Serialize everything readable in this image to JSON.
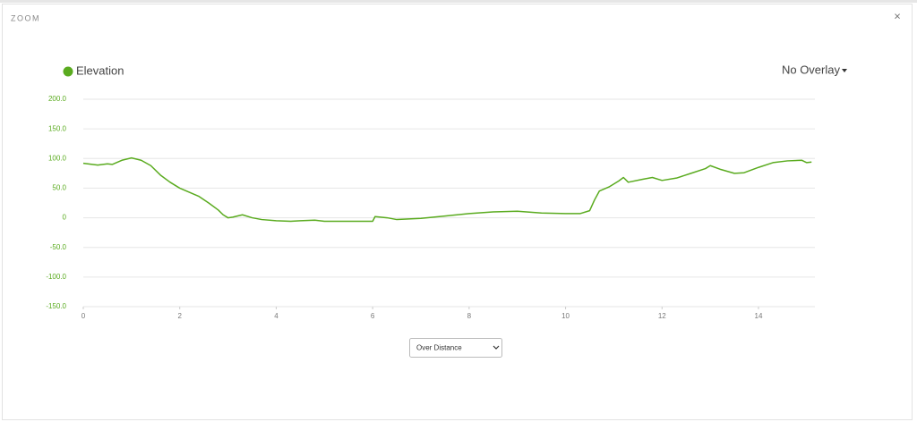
{
  "header": {
    "title": "ZOOM",
    "close": "×"
  },
  "controls": {
    "overlay": "No Overlay",
    "x_mode": "Over Distance"
  },
  "chart_data": {
    "type": "line",
    "x": [
      0,
      0.3,
      0.5,
      0.6,
      0.8,
      1.0,
      1.2,
      1.4,
      1.6,
      1.8,
      2.0,
      2.2,
      2.4,
      2.6,
      2.8,
      2.9,
      3.0,
      3.1,
      3.3,
      3.5,
      3.7,
      4.0,
      4.3,
      4.5,
      4.8,
      5.0,
      5.5,
      6.0,
      6.05,
      6.3,
      6.5,
      7.0,
      7.5,
      8.0,
      8.5,
      9.0,
      9.5,
      10.0,
      10.3,
      10.5,
      10.6,
      10.7,
      10.9,
      11.1,
      11.2,
      11.3,
      11.6,
      11.8,
      12.0,
      12.3,
      12.6,
      12.9,
      13.0,
      13.2,
      13.5,
      13.7,
      14.0,
      14.3,
      14.6,
      14.9,
      15.0,
      15.1
    ],
    "series": [
      {
        "name": "Elevation",
        "color": "#5aab1f",
        "values": [
          92,
          89,
          91,
          90,
          97,
          101,
          97,
          88,
          72,
          60,
          50,
          43,
          36,
          25,
          13,
          5,
          0,
          1,
          5,
          0,
          -3,
          -5,
          -6,
          -5,
          -4,
          -6,
          -6,
          -6,
          2,
          0,
          -3,
          -1,
          3,
          7,
          10,
          11,
          8,
          7,
          7,
          12,
          30,
          45,
          52,
          62,
          68,
          60,
          65,
          68,
          63,
          67,
          75,
          83,
          88,
          82,
          75,
          76,
          85,
          93,
          96,
          97,
          93,
          94
        ]
      }
    ],
    "xlim": [
      0,
      15.17
    ],
    "xticks": [
      0,
      2,
      4,
      6,
      8,
      10,
      12,
      14
    ],
    "ylim": [
      -150,
      200
    ],
    "yticks": [
      {
        "value": 200,
        "label": "200.0"
      },
      {
        "value": 150,
        "label": "150.0"
      },
      {
        "value": 100,
        "label": "100.0"
      },
      {
        "value": 50,
        "label": "50.0"
      },
      0,
      {
        "value": -50,
        "label": "-50.0"
      },
      {
        "value": -100,
        "label": "-100.0"
      },
      {
        "value": -150,
        "label": "-150.0"
      }
    ],
    "grid": true
  }
}
